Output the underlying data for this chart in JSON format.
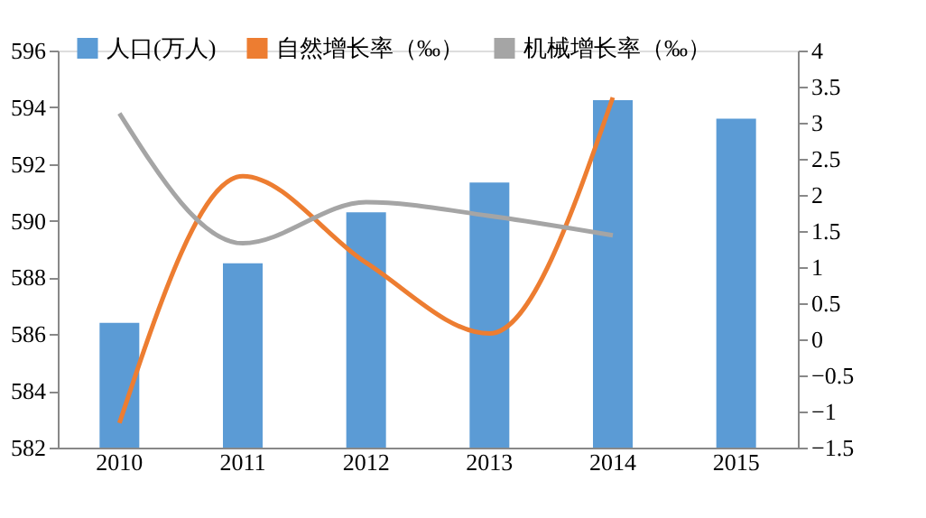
{
  "chart_data": {
    "type": "bar",
    "categories": [
      "2010",
      "2011",
      "2012",
      "2013",
      "2014",
      "2015"
    ],
    "series": [
      {
        "name": "人口(万人)",
        "color": "#5b9bd5",
        "values": [
          586.4,
          588.5,
          590.3,
          591.35,
          594.25,
          593.6
        ]
      },
      {
        "name": "自然增长率（‰）",
        "type": "line",
        "axis": "y2",
        "color": "#ed7d31",
        "values": [
          -1.16,
          2.26,
          1.06,
          0.08,
          3.35,
          null
        ]
      },
      {
        "name": "机械增长率（‰）",
        "type": "line",
        "axis": "y2",
        "color": "#a5a5a5",
        "values": [
          3.13,
          1.33,
          1.9,
          1.71,
          1.44,
          null
        ]
      }
    ],
    "ylim": [
      582,
      596
    ],
    "yticks": [
      582,
      584,
      586,
      588,
      590,
      592,
      594,
      596
    ],
    "y2lim": [
      -1.5,
      4
    ],
    "y2ticks": [
      -1.5,
      -1,
      -0.5,
      0,
      0.5,
      1,
      1.5,
      2,
      2.5,
      3,
      3.5,
      4
    ],
    "grid": false,
    "legend": "top"
  }
}
